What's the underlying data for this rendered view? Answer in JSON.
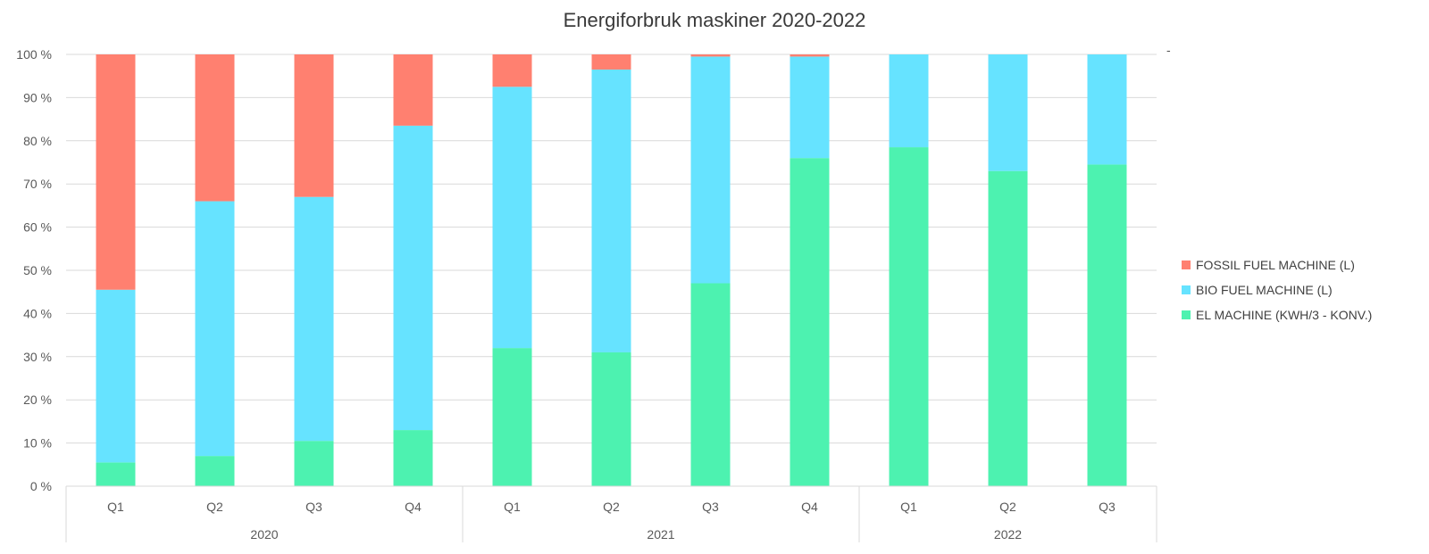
{
  "chart_data": {
    "type": "bar",
    "stacked": "percent",
    "title": "Energiforbruk maskiner 2020-2022",
    "xlabel": "",
    "ylabel": "",
    "ylim": [
      0,
      100
    ],
    "y_ticks": [
      "0 %",
      "10 %",
      "20 %",
      "30 %",
      "40 %",
      "50 %",
      "60 %",
      "70 %",
      "80 %",
      "90 %",
      "100 %"
    ],
    "categories": [
      "Q1",
      "Q2",
      "Q3",
      "Q4",
      "Q1",
      "Q2",
      "Q3",
      "Q4",
      "Q1",
      "Q2",
      "Q3"
    ],
    "groups": [
      {
        "label": "2020",
        "count": 4
      },
      {
        "label": "2021",
        "count": 4
      },
      {
        "label": "2022",
        "count": 3
      }
    ],
    "series": [
      {
        "name": "EL MACHINE (KWH/3 - KONV.)",
        "color": "#4DF2B0",
        "values": [
          5.5,
          7,
          10.5,
          13,
          32,
          31,
          47,
          76,
          78.5,
          73,
          74.5
        ]
      },
      {
        "name": "BIO FUEL MACHINE (L)",
        "color": "#66E3FF",
        "values": [
          40,
          59,
          56.5,
          70.5,
          60.5,
          65.5,
          52.5,
          23.5,
          21.5,
          27,
          25.5
        ]
      },
      {
        "name": "FOSSIL FUEL MACHINE (L)",
        "color": "#FF8070",
        "values": [
          54.5,
          34,
          33,
          16.5,
          7.5,
          3.5,
          0.5,
          0.5,
          0,
          0,
          0
        ]
      }
    ],
    "legend_position": "right",
    "legend_order": [
      "FOSSIL FUEL MACHINE (L)",
      "BIO FUEL MACHINE (L)",
      "EL MACHINE (KWH/3 - KONV.)"
    ],
    "grid": true
  },
  "extra_mark": "-"
}
